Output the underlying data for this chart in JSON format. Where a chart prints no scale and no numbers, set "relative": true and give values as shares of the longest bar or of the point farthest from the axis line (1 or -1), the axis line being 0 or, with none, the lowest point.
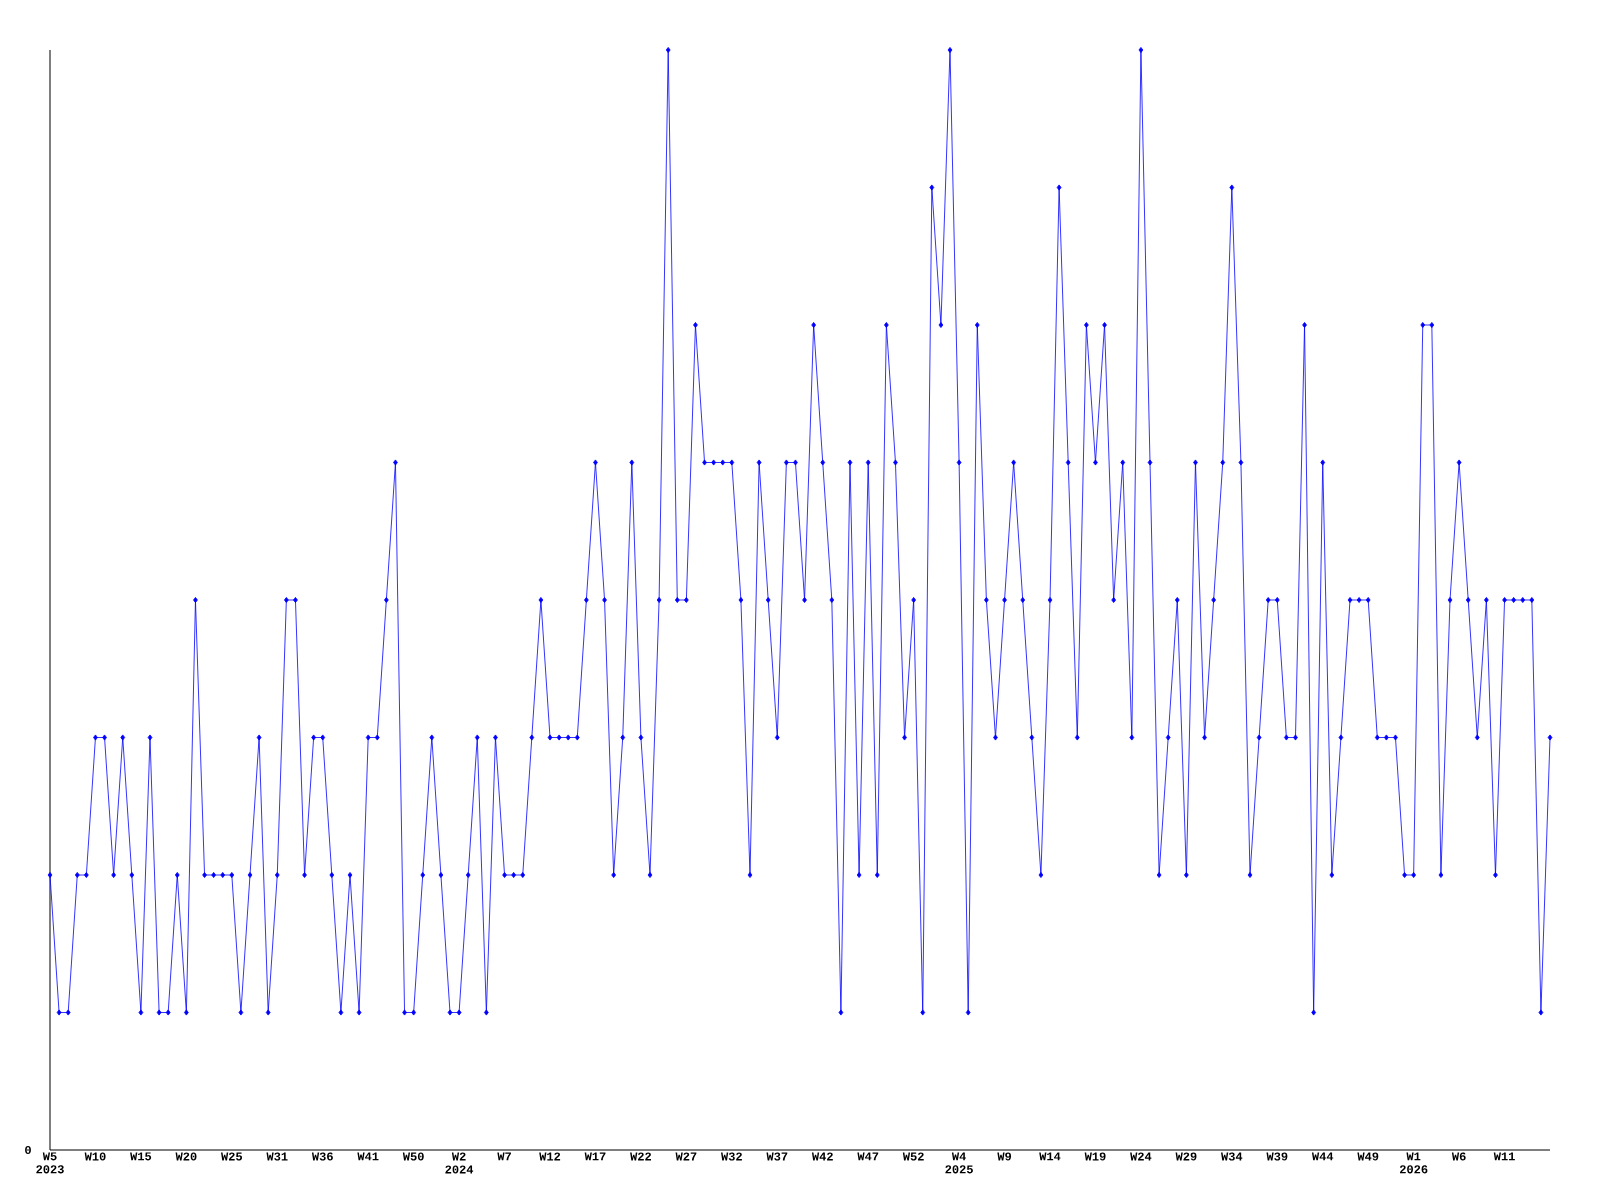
{
  "chart_data": {
    "type": "line",
    "relative": true,
    "color": "#0000ff",
    "marker": "diamond",
    "line_style": "solid",
    "annotations": [
      "0"
    ],
    "categories": [
      "W5 2023",
      null,
      null,
      null,
      null,
      "W10",
      null,
      null,
      null,
      null,
      "W15",
      null,
      null,
      null,
      null,
      "W20",
      null,
      null,
      null,
      null,
      "W25",
      null,
      null,
      null,
      null,
      "W31",
      null,
      null,
      null,
      null,
      "W36",
      null,
      null,
      null,
      null,
      "W41",
      null,
      null,
      null,
      null,
      "W50",
      null,
      null,
      null,
      null,
      "W2 2024",
      null,
      null,
      null,
      null,
      "W7",
      null,
      null,
      null,
      null,
      "W12",
      null,
      null,
      null,
      null,
      "W17",
      null,
      null,
      null,
      null,
      "W22",
      null,
      null,
      null,
      null,
      "W27",
      null,
      null,
      null,
      null,
      "W32",
      null,
      null,
      null,
      null,
      "W37",
      null,
      null,
      null,
      null,
      "W42",
      null,
      null,
      null,
      null,
      "W47",
      null,
      null,
      null,
      null,
      "W52",
      null,
      null,
      null,
      null,
      "W4 2025",
      null,
      null,
      null,
      null,
      "W9",
      null,
      null,
      null,
      null,
      "W14",
      null,
      null,
      null,
      null,
      "W19",
      null,
      null,
      null,
      null,
      "W24",
      null,
      null,
      null,
      null,
      "W29",
      null,
      null,
      null,
      null,
      "W34",
      null,
      null,
      null,
      null,
      "W39",
      null,
      null,
      null,
      null,
      "W44",
      null,
      null,
      null,
      null,
      "W49",
      null,
      null,
      null,
      null,
      "W1 2026",
      null,
      null,
      null,
      null,
      "W6",
      null,
      null,
      null,
      null,
      "W11",
      null,
      null,
      null,
      null,
      null
    ],
    "values": [
      0.25,
      0.125,
      0.125,
      0.25,
      0.25,
      0.375,
      0.375,
      0.25,
      0.375,
      0.25,
      0.125,
      0.375,
      0.125,
      0.125,
      0.25,
      0.125,
      0.5,
      0.25,
      0.25,
      0.25,
      0.25,
      0.125,
      0.25,
      0.375,
      0.125,
      0.25,
      0.5,
      0.5,
      0.25,
      0.375,
      0.375,
      0.25,
      0.125,
      0.25,
      0.125,
      0.375,
      0.375,
      0.5,
      0.625,
      0.125,
      0.125,
      0.25,
      0.375,
      0.25,
      0.125,
      0.125,
      0.25,
      0.375,
      0.125,
      0.375,
      0.25,
      0.25,
      0.25,
      0.375,
      0.5,
      0.375,
      0.375,
      0.375,
      0.375,
      0.5,
      0.625,
      0.5,
      0.25,
      0.375,
      0.625,
      0.375,
      0.25,
      0.5,
      1,
      0.5,
      0.5,
      0.75,
      0.625,
      0.625,
      0.625,
      0.625,
      0.5,
      0.25,
      0.625,
      0.5,
      0.375,
      0.625,
      0.625,
      0.5,
      0.75,
      0.625,
      0.5,
      0.125,
      0.625,
      0.25,
      0.625,
      0.25,
      0.75,
      0.625,
      0.375,
      0.5,
      0.125,
      0.875,
      0.75,
      1,
      0.625,
      0.125,
      0.75,
      0.5,
      0.375,
      0.5,
      0.625,
      0.5,
      0.375,
      0.25,
      0.5,
      0.875,
      0.625,
      0.375,
      0.75,
      0.625,
      0.75,
      0.5,
      0.625,
      0.375,
      1,
      0.625,
      0.25,
      0.375,
      0.5,
      0.25,
      0.625,
      0.375,
      0.5,
      0.625,
      0.875,
      0.625,
      0.25,
      0.375,
      0.5,
      0.5,
      0.375,
      0.375,
      0.75,
      0.125,
      0.625,
      0.25,
      0.375,
      0.5,
      0.5,
      0.5,
      0.375,
      0.375,
      0.375,
      0.25,
      0.25,
      0.75,
      0.75,
      0.25,
      0.5,
      0.625,
      0.5,
      0.375,
      0.5,
      0.25,
      0.5,
      0.5,
      0.5,
      0.5,
      0.125,
      0.375
    ]
  }
}
